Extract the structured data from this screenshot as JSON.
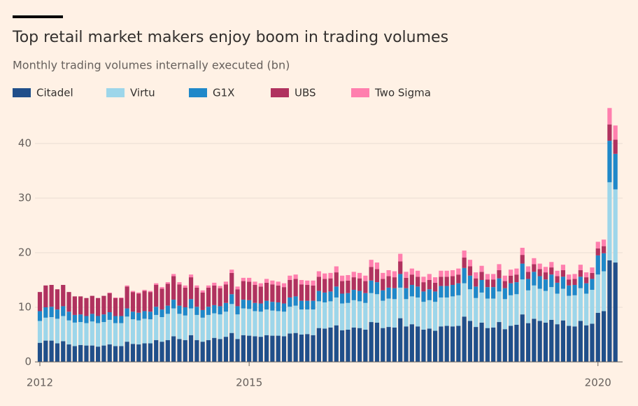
{
  "chart_data": {
    "type": "stacked_bar",
    "title": "Top retail market makers enjoy boom in trading volumes",
    "subtitle": "Monthly trading volumes internally executed (bn)",
    "categories": [
      "2012",
      null,
      null,
      null,
      null,
      null,
      null,
      null,
      null,
      null,
      null,
      null,
      null,
      null,
      null,
      null,
      null,
      null,
      null,
      null,
      null,
      null,
      null,
      null,
      null,
      null,
      null,
      null,
      null,
      null,
      null,
      null,
      null,
      null,
      null,
      null,
      "2015",
      null,
      null,
      null,
      null,
      null,
      null,
      null,
      null,
      null,
      null,
      null,
      null,
      null,
      null,
      null,
      null,
      null,
      null,
      null,
      null,
      null,
      null,
      null,
      null,
      null,
      null,
      null,
      null,
      null,
      null,
      null,
      null,
      null,
      null,
      null,
      null,
      null,
      null,
      null,
      null,
      null,
      null,
      null,
      null,
      null,
      null,
      null,
      null,
      null,
      null,
      null,
      null,
      null,
      null,
      null,
      null,
      null,
      null,
      null,
      "2020",
      null,
      null,
      null
    ],
    "series": [
      {
        "name": "Citadel",
        "color": "#204f8a",
        "values": [
          3.5,
          3.9,
          3.9,
          3.4,
          3.8,
          3.2,
          2.9,
          3.1,
          3.0,
          3.0,
          2.8,
          3.0,
          3.2,
          2.9,
          2.9,
          3.7,
          3.3,
          3.2,
          3.4,
          3.4,
          4.0,
          3.7,
          4.0,
          4.7,
          4.2,
          4.0,
          4.9,
          4.0,
          3.7,
          4.0,
          4.4,
          4.2,
          4.6,
          5.3,
          4.2,
          4.9,
          4.8,
          4.7,
          4.6,
          4.9,
          4.8,
          4.8,
          4.7,
          5.2,
          5.3,
          5.0,
          5.1,
          4.9,
          6.2,
          6.1,
          6.3,
          6.7,
          5.8,
          5.9,
          6.3,
          6.2,
          5.9,
          7.3,
          7.2,
          6.2,
          6.4,
          6.3,
          8.0,
          6.5,
          6.9,
          6.5,
          5.9,
          6.1,
          5.7,
          6.5,
          6.6,
          6.5,
          6.6,
          8.3,
          7.5,
          6.4,
          7.2,
          6.2,
          6.3,
          7.3,
          6.0,
          6.6,
          6.8,
          8.7,
          7.1,
          7.9,
          7.5,
          7.2,
          7.7,
          6.9,
          7.6,
          6.6,
          6.5,
          7.5,
          6.7,
          7.0,
          9.0,
          9.3,
          18.6,
          18.2
        ]
      },
      {
        "name": "Virtu",
        "color": "#9dd6ea",
        "values": [
          4.0,
          4.2,
          4.3,
          4.5,
          4.6,
          4.4,
          4.3,
          4.2,
          4.1,
          4.4,
          4.3,
          4.3,
          4.5,
          4.2,
          4.2,
          4.6,
          4.5,
          4.4,
          4.5,
          4.4,
          4.6,
          4.5,
          4.8,
          5.1,
          4.6,
          4.5,
          4.9,
          4.6,
          4.4,
          4.6,
          4.5,
          4.5,
          4.6,
          5.3,
          4.5,
          4.9,
          4.9,
          4.6,
          4.6,
          4.7,
          4.6,
          4.5,
          4.5,
          4.9,
          5.0,
          4.6,
          4.5,
          4.7,
          4.9,
          4.8,
          4.8,
          5.1,
          4.9,
          4.9,
          5.0,
          4.9,
          4.9,
          5.3,
          5.2,
          5.0,
          5.2,
          5.2,
          5.6,
          5.0,
          5.1,
          5.3,
          5.1,
          5.2,
          5.3,
          5.3,
          5.2,
          5.5,
          5.6,
          6.1,
          5.8,
          5.3,
          5.5,
          5.4,
          5.3,
          5.6,
          5.5,
          5.6,
          5.6,
          6.4,
          6.0,
          6.1,
          5.9,
          5.8,
          6.0,
          5.6,
          5.8,
          5.5,
          5.7,
          6.0,
          5.8,
          6.2,
          7.0,
          7.3,
          14.3,
          13.4
        ]
      },
      {
        "name": "G1X",
        "color": "#1f88c9",
        "values": [
          1.8,
          1.9,
          1.9,
          1.7,
          1.8,
          1.6,
          1.4,
          1.4,
          1.3,
          1.4,
          1.3,
          1.4,
          1.4,
          1.3,
          1.3,
          1.5,
          1.4,
          1.4,
          1.4,
          1.4,
          1.5,
          1.4,
          1.5,
          1.6,
          1.5,
          1.5,
          1.7,
          1.5,
          1.4,
          1.5,
          1.5,
          1.5,
          1.6,
          1.8,
          1.5,
          1.6,
          1.6,
          1.5,
          1.5,
          1.6,
          1.6,
          1.6,
          1.5,
          1.7,
          1.7,
          1.6,
          1.6,
          1.6,
          1.9,
          1.8,
          1.8,
          2.0,
          1.8,
          1.8,
          1.9,
          1.9,
          1.8,
          2.3,
          2.2,
          1.9,
          2.0,
          2.0,
          2.5,
          2.0,
          2.1,
          2.0,
          1.9,
          2.0,
          1.9,
          2.1,
          2.1,
          2.1,
          2.2,
          2.8,
          2.5,
          2.1,
          2.3,
          2.1,
          2.1,
          2.4,
          2.0,
          2.2,
          2.2,
          2.9,
          2.1,
          2.5,
          2.3,
          2.1,
          2.3,
          2.0,
          2.2,
          1.9,
          1.9,
          2.1,
          1.9,
          2.0,
          3.5,
          3.3,
          7.6,
          6.5
        ]
      },
      {
        "name": "UBS",
        "color": "#b0325f",
        "values": [
          3.5,
          4.0,
          4.0,
          3.7,
          3.9,
          3.6,
          3.4,
          3.3,
          3.3,
          3.3,
          3.3,
          3.4,
          3.5,
          3.3,
          3.3,
          4.0,
          3.6,
          3.5,
          3.7,
          3.6,
          4.0,
          3.8,
          4.0,
          4.3,
          3.9,
          3.6,
          4.0,
          3.5,
          3.2,
          3.5,
          3.6,
          3.3,
          3.4,
          3.9,
          3.1,
          3.4,
          3.4,
          3.3,
          3.1,
          3.3,
          3.2,
          3.1,
          3.0,
          3.2,
          3.2,
          3.0,
          2.9,
          2.8,
          2.6,
          2.5,
          2.4,
          2.6,
          2.3,
          2.3,
          2.3,
          2.3,
          2.2,
          2.5,
          2.4,
          2.1,
          2.1,
          2.0,
          2.3,
          1.9,
          1.9,
          1.8,
          1.7,
          1.7,
          1.6,
          1.7,
          1.7,
          1.6,
          1.6,
          1.9,
          1.7,
          1.5,
          1.5,
          1.4,
          1.4,
          1.5,
          1.3,
          1.4,
          1.4,
          1.6,
          1.3,
          1.4,
          1.3,
          1.3,
          1.3,
          1.2,
          1.2,
          1.1,
          1.1,
          1.2,
          1.1,
          1.1,
          1.3,
          1.3,
          3.0,
          2.6
        ]
      },
      {
        "name": "Two Sigma",
        "color": "#ff7fae",
        "values": [
          0,
          0,
          0,
          0,
          0,
          0,
          0,
          0,
          0,
          0,
          0,
          0,
          0.1,
          0.1,
          0.1,
          0.2,
          0.2,
          0.2,
          0.2,
          0.2,
          0.3,
          0.3,
          0.3,
          0.4,
          0.4,
          0.4,
          0.5,
          0.4,
          0.4,
          0.4,
          0.5,
          0.4,
          0.5,
          0.6,
          0.5,
          0.6,
          0.7,
          0.6,
          0.6,
          0.7,
          0.7,
          0.7,
          0.7,
          0.8,
          0.8,
          0.8,
          0.8,
          0.9,
          1.0,
          1.0,
          1.0,
          1.1,
          1.0,
          1.0,
          1.0,
          1.0,
          1.0,
          1.3,
          1.2,
          1.1,
          1.1,
          1.1,
          1.4,
          1.1,
          1.1,
          1.1,
          1.0,
          1.1,
          1.0,
          1.1,
          1.1,
          1.1,
          1.1,
          1.3,
          1.2,
          1.1,
          1.1,
          1.0,
          1.0,
          1.1,
          1.0,
          1.1,
          1.1,
          1.3,
          1.0,
          1.1,
          1.0,
          1.0,
          1.0,
          1.0,
          1.0,
          0.9,
          0.9,
          1.0,
          0.9,
          1.0,
          1.2,
          1.2,
          3.0,
          2.6
        ]
      }
    ],
    "ylim": [
      0,
      47
    ],
    "yticks": [
      0,
      10,
      20,
      30,
      40
    ],
    "grid": true
  }
}
